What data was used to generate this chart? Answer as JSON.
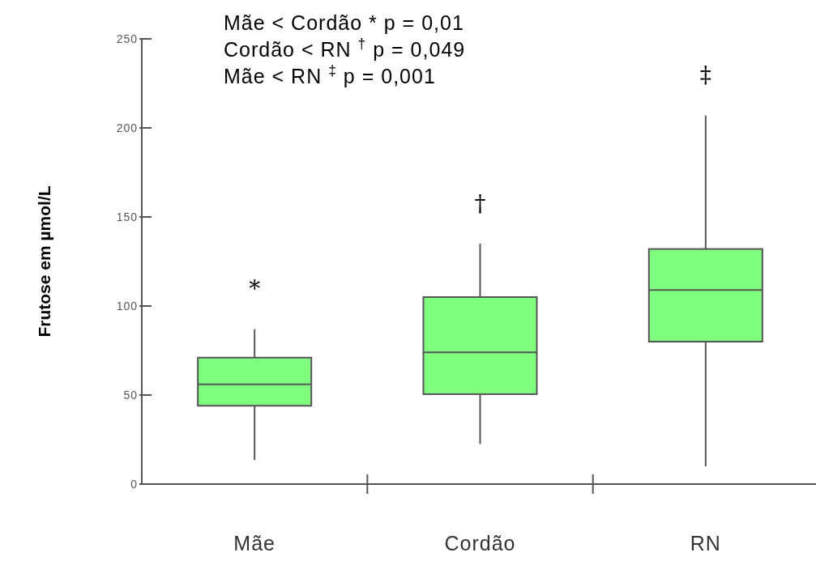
{
  "chart_data": {
    "type": "box",
    "ylabel": "Frutose em µmol/L",
    "categories": [
      "Mãe",
      "Cordão",
      "RN"
    ],
    "color": "#80ff80",
    "boxes": [
      {
        "low": 13.5,
        "q1": 44,
        "median": 56,
        "q3": 71,
        "high": 87
      },
      {
        "low": 22.5,
        "q1": 50.5,
        "median": 74,
        "q3": 105,
        "high": 135
      },
      {
        "low": 10,
        "q1": 80,
        "median": 109,
        "q3": 132,
        "high": 207
      }
    ],
    "ylim": [
      0,
      250
    ],
    "yticks": [
      0,
      50,
      100,
      150,
      200,
      250
    ],
    "grid": false,
    "annotations": [
      "Mãe < Cordão  * p = 0,01",
      "Cordão < RN $^{†}$ p = 0,049",
      "Mãe < RN $^{‡}$ p = 0,001",
      "*",
      "†",
      "‡"
    ]
  }
}
